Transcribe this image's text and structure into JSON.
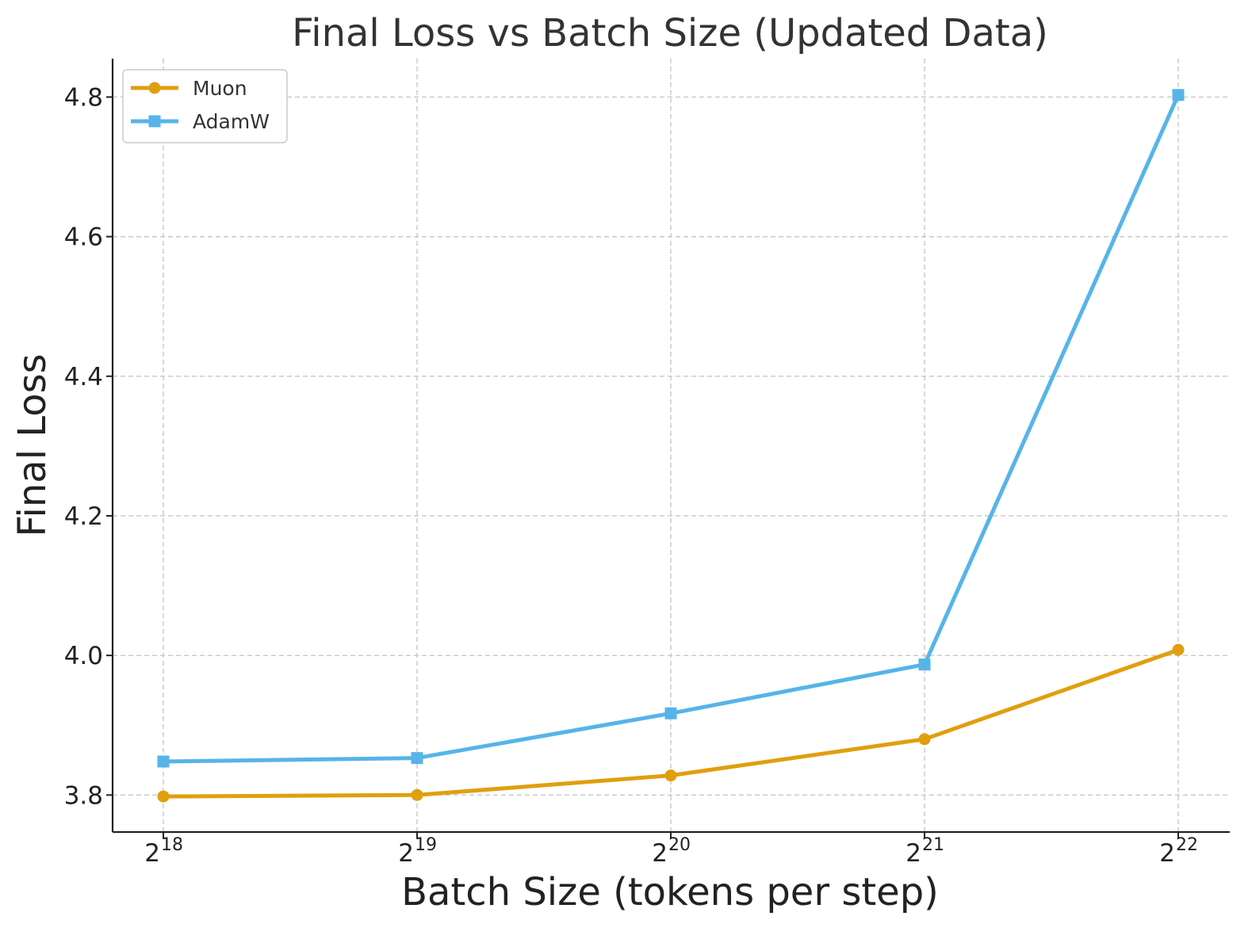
{
  "chart_data": {
    "type": "line",
    "title": "Final Loss vs Batch Size (Updated Data)",
    "xlabel": "Batch Size (tokens per step)",
    "ylabel": "Final Loss",
    "x_scale": "log2",
    "x": [
      262144,
      524288,
      1048576,
      2097152,
      4194304
    ],
    "x_tick_labels": [
      {
        "base": "2",
        "exp": "18"
      },
      {
        "base": "2",
        "exp": "19"
      },
      {
        "base": "2",
        "exp": "20"
      },
      {
        "base": "2",
        "exp": "21"
      },
      {
        "base": "2",
        "exp": "22"
      }
    ],
    "ylim": [
      3.747,
      4.855
    ],
    "y_ticks": [
      "3.8",
      "4.0",
      "4.2",
      "4.4",
      "4.6",
      "4.8"
    ],
    "grid": true,
    "legend_position": "top-left",
    "series": [
      {
        "name": "Muon",
        "color": "#E09F0E",
        "marker": "circle",
        "values": [
          3.798,
          3.8,
          3.828,
          3.88,
          4.008
        ]
      },
      {
        "name": "AdamW",
        "color": "#56B4E9",
        "marker": "square",
        "values": [
          3.848,
          3.853,
          3.917,
          3.987,
          4.803
        ]
      }
    ]
  }
}
